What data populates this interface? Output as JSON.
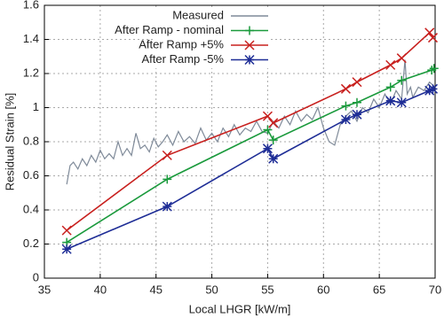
{
  "chart_data": {
    "type": "line",
    "xlabel": "Local LHGR [kW/m]",
    "ylabel": "Residual Strain [%]",
    "xlim": [
      35,
      70
    ],
    "xticks": [
      35,
      40,
      45,
      50,
      55,
      60,
      65,
      70
    ],
    "ylim": [
      0,
      1.6
    ],
    "yticks": [
      0,
      0.2,
      0.4,
      0.6,
      0.8,
      1,
      1.2,
      1.4,
      1.6
    ],
    "grid": true,
    "series": [
      {
        "name": "Measured",
        "color": "#7f8a99",
        "marker": "none",
        "x": [
          37,
          37.3,
          37.6,
          38,
          38.4,
          38.8,
          39.2,
          39.6,
          40,
          40.4,
          40.8,
          41.2,
          41.6,
          42,
          42.4,
          42.8,
          43.2,
          43.6,
          44,
          44.4,
          44.8,
          45.2,
          45.6,
          46,
          46.5,
          47,
          47.5,
          48,
          48.5,
          49,
          49.5,
          50,
          50.5,
          51,
          51.5,
          52,
          52.5,
          53,
          53.5,
          54,
          54.5,
          55,
          55.5,
          56,
          56.5,
          57,
          57.5,
          58,
          58.5,
          59,
          59.5,
          60,
          60.5,
          61,
          61.5,
          62,
          62.5,
          63,
          63.5,
          64,
          64.5,
          65,
          65.5,
          66,
          66.5,
          67,
          67.3,
          67.5,
          67.8,
          68,
          68.5,
          69,
          69.5,
          70
        ],
        "values": [
          0.55,
          0.66,
          0.68,
          0.64,
          0.7,
          0.66,
          0.72,
          0.68,
          0.75,
          0.7,
          0.73,
          0.7,
          0.8,
          0.72,
          0.76,
          0.72,
          0.85,
          0.76,
          0.78,
          0.74,
          0.82,
          0.77,
          0.8,
          0.84,
          0.78,
          0.86,
          0.8,
          0.83,
          0.79,
          0.88,
          0.81,
          0.85,
          0.8,
          0.88,
          0.83,
          0.9,
          0.84,
          0.88,
          0.86,
          0.92,
          0.86,
          0.85,
          0.92,
          0.88,
          0.95,
          0.9,
          0.98,
          0.92,
          0.96,
          0.93,
          1.0,
          0.88,
          0.8,
          0.78,
          0.9,
          0.95,
          0.98,
          0.92,
          1.0,
          0.97,
          1.05,
          1.0,
          1.08,
          1.02,
          1.1,
          1.05,
          1.28,
          1.08,
          1.12,
          1.06,
          1.12,
          1.1,
          1.15,
          1.12
        ]
      },
      {
        "name": "After Ramp - nominal",
        "color": "#1a9a3c",
        "marker": "plus",
        "x": [
          37,
          46,
          55,
          55.5,
          62,
          63,
          66,
          67,
          69.7,
          69.9
        ],
        "values": [
          0.21,
          0.58,
          0.87,
          0.81,
          1.01,
          1.03,
          1.12,
          1.16,
          1.22,
          1.23
        ]
      },
      {
        "name": "After Ramp +5%",
        "color": "#c8201e",
        "marker": "x",
        "x": [
          37,
          46,
          55,
          55.5,
          62,
          63,
          66,
          67,
          69.5,
          69.8
        ],
        "values": [
          0.28,
          0.72,
          0.95,
          0.91,
          1.11,
          1.15,
          1.25,
          1.29,
          1.44,
          1.41
        ]
      },
      {
        "name": "After Ramp -5%",
        "color": "#1e2d96",
        "marker": "star",
        "x": [
          37,
          46,
          55,
          55.5,
          62,
          63,
          66,
          67,
          69.5,
          69.8
        ],
        "values": [
          0.17,
          0.42,
          0.76,
          0.7,
          0.93,
          0.96,
          1.04,
          1.03,
          1.1,
          1.11
        ]
      }
    ]
  }
}
